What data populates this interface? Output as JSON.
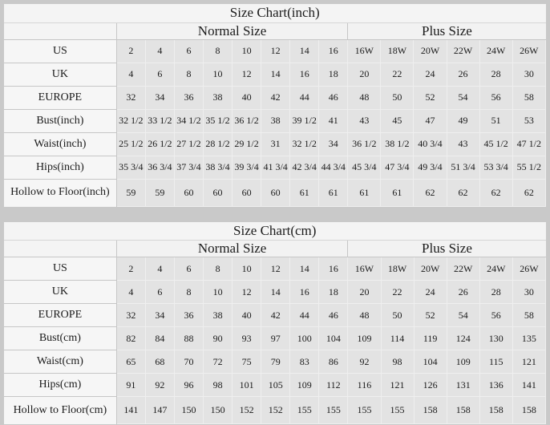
{
  "page": {
    "background_color": "#c9c9c9",
    "table_bg_color": "#f4f4f4",
    "cell_bg_color": "#e3e3e3",
    "text_color": "#1b1b1b"
  },
  "tables": [
    {
      "name": "size-chart-inch-table",
      "title": "Size Chart(inch)",
      "group_headers": [
        {
          "label": "Normal Size",
          "span": 8
        },
        {
          "label": "Plus Size",
          "span": 6
        }
      ],
      "rows": [
        {
          "label": "US",
          "values": [
            "2",
            "4",
            "6",
            "8",
            "10",
            "12",
            "14",
            "16",
            "16W",
            "18W",
            "20W",
            "22W",
            "24W",
            "26W"
          ]
        },
        {
          "label": "UK",
          "values": [
            "4",
            "6",
            "8",
            "10",
            "12",
            "14",
            "16",
            "18",
            "20",
            "22",
            "24",
            "26",
            "28",
            "30"
          ]
        },
        {
          "label": "EUROPE",
          "values": [
            "32",
            "34",
            "36",
            "38",
            "40",
            "42",
            "44",
            "46",
            "48",
            "50",
            "52",
            "54",
            "56",
            "58"
          ]
        },
        {
          "label": "Bust(inch)",
          "values": [
            "32 1/2",
            "33 1/2",
            "34 1/2",
            "35 1/2",
            "36 1/2",
            "38",
            "39 1/2",
            "41",
            "43",
            "45",
            "47",
            "49",
            "51",
            "53"
          ]
        },
        {
          "label": "Waist(inch)",
          "values": [
            "25 1/2",
            "26 1/2",
            "27 1/2",
            "28 1/2",
            "29 1/2",
            "31",
            "32 1/2",
            "34",
            "36 1/2",
            "38 1/2",
            "40 3/4",
            "43",
            "45 1/2",
            "47 1/2"
          ]
        },
        {
          "label": "Hips(inch)",
          "values": [
            "35 3/4",
            "36 3/4",
            "37 3/4",
            "38 3/4",
            "39 3/4",
            "41 3/4",
            "42 3/4",
            "44 3/4",
            "45 3/4",
            "47 3/4",
            "49 3/4",
            "51 3/4",
            "53 3/4",
            "55 1/2"
          ]
        },
        {
          "label": "Hollow to Floor(inch)",
          "values": [
            "59",
            "59",
            "60",
            "60",
            "60",
            "60",
            "61",
            "61",
            "61",
            "61",
            "62",
            "62",
            "62",
            "62"
          ]
        }
      ]
    },
    {
      "name": "size-chart-cm-table",
      "title": "Size Chart(cm)",
      "group_headers": [
        {
          "label": "Normal Size",
          "span": 8
        },
        {
          "label": "Plus Size",
          "span": 6
        }
      ],
      "rows": [
        {
          "label": "US",
          "values": [
            "2",
            "4",
            "6",
            "8",
            "10",
            "12",
            "14",
            "16",
            "16W",
            "18W",
            "20W",
            "22W",
            "24W",
            "26W"
          ]
        },
        {
          "label": "UK",
          "values": [
            "4",
            "6",
            "8",
            "10",
            "12",
            "14",
            "16",
            "18",
            "20",
            "22",
            "24",
            "26",
            "28",
            "30"
          ]
        },
        {
          "label": "EUROPE",
          "values": [
            "32",
            "34",
            "36",
            "38",
            "40",
            "42",
            "44",
            "46",
            "48",
            "50",
            "52",
            "54",
            "56",
            "58"
          ]
        },
        {
          "label": "Bust(cm)",
          "values": [
            "82",
            "84",
            "88",
            "90",
            "93",
            "97",
            "100",
            "104",
            "109",
            "114",
            "119",
            "124",
            "130",
            "135"
          ]
        },
        {
          "label": "Waist(cm)",
          "values": [
            "65",
            "68",
            "70",
            "72",
            "75",
            "79",
            "83",
            "86",
            "92",
            "98",
            "104",
            "109",
            "115",
            "121"
          ]
        },
        {
          "label": "Hips(cm)",
          "values": [
            "91",
            "92",
            "96",
            "98",
            "101",
            "105",
            "109",
            "112",
            "116",
            "121",
            "126",
            "131",
            "136",
            "141"
          ]
        },
        {
          "label": "Hollow to Floor(cm)",
          "values": [
            "141",
            "147",
            "150",
            "150",
            "152",
            "152",
            "155",
            "155",
            "155",
            "155",
            "158",
            "158",
            "158",
            "158"
          ]
        }
      ]
    }
  ]
}
